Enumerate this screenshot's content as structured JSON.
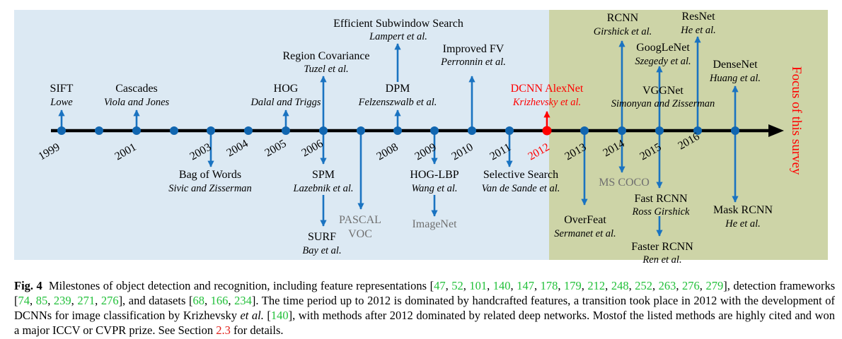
{
  "colors": {
    "left_panel": "#dce9f3",
    "right_panel": "#cdd4a7",
    "axis": "#000000",
    "marker": "#1166b0",
    "arrow": "#1a73c1",
    "highlight": "#ff0000",
    "gray_text": "#707070",
    "citation": "#22c03a"
  },
  "years": [
    "1999",
    "2001",
    "2003",
    "2004",
    "2005",
    "2006",
    "2008",
    "2009",
    "2010",
    "2011",
    "2012",
    "2013",
    "2014",
    "2015",
    "2016"
  ],
  "focus_label": "Focus of this survey",
  "above": [
    {
      "id": "sift",
      "title": "SIFT",
      "author": "Lowe"
    },
    {
      "id": "cascades",
      "title": "Cascades",
      "author": "Viola and Jones"
    },
    {
      "id": "hog",
      "title": "HOG",
      "author": "Dalal and Triggs"
    },
    {
      "id": "region-covariance",
      "title": "Region Covariance",
      "author": "Tuzel et al."
    },
    {
      "id": "efficient-subwindow",
      "title": "Efficient Subwindow Search",
      "author": "Lampert et al."
    },
    {
      "id": "dpm",
      "title": "DPM",
      "author": "Felzenszwalb et al."
    },
    {
      "id": "improved-fv",
      "title": "Improved FV",
      "author": "Perronnin et al."
    },
    {
      "id": "dcnn-alexnet",
      "title": "DCNN AlexNet",
      "author": "Krizhevsky et al."
    },
    {
      "id": "rcnn",
      "title": "RCNN",
      "author": "Girshick et al."
    },
    {
      "id": "googlenet",
      "title": "GoogLeNet",
      "author": "Szegedy et al."
    },
    {
      "id": "vggnet",
      "title": "VGGNet",
      "author": "Simonyan and Zisserman"
    },
    {
      "id": "resnet",
      "title": "ResNet",
      "author": "He et al."
    },
    {
      "id": "densenet",
      "title": "DenseNet",
      "author": "Huang et al."
    }
  ],
  "below": [
    {
      "id": "bag-of-words",
      "title": "Bag of Words",
      "author": "Sivic and Zisserman"
    },
    {
      "id": "spm",
      "title": "SPM",
      "author": "Lazebnik et al."
    },
    {
      "id": "surf",
      "title": "SURF",
      "author": "Bay et al."
    },
    {
      "id": "hog-lbp",
      "title": "HOG-LBP",
      "author": "Wang et al."
    },
    {
      "id": "selective-search",
      "title": "Selective Search",
      "author": "Van de Sande et al."
    },
    {
      "id": "overfeat",
      "title": "OverFeat",
      "author": "Sermanet et al."
    },
    {
      "id": "fast-rcnn",
      "title": "Fast RCNN",
      "author": "Ross Girshick"
    },
    {
      "id": "faster-rcnn",
      "title": "Faster RCNN",
      "author": "Ren et al."
    },
    {
      "id": "mask-rcnn",
      "title": "Mask RCNN",
      "author": "He et al."
    }
  ],
  "datasets": [
    {
      "id": "pascal-voc",
      "line1": "PASCAL",
      "line2": "VOC"
    },
    {
      "id": "imagenet",
      "line1": "ImageNet",
      "line2": ""
    },
    {
      "id": "ms-coco",
      "line1": "MS COCO",
      "line2": ""
    }
  ],
  "caption": {
    "label": "Fig. 4",
    "text1": "Milestones of object detection and recognition, including feature representations [",
    "cites1": [
      "47",
      "52",
      "101",
      "140",
      "147",
      "178",
      "179",
      "212",
      "248",
      "252",
      "263",
      "276",
      "279"
    ],
    "text2": "], detection frameworks [",
    "cites2": [
      "74",
      "85",
      "239",
      "271",
      "276"
    ],
    "text3": "], and datasets [",
    "cites3": [
      "68",
      "166",
      "234"
    ],
    "text4": "]. The time period up to 2012 is dominated by handcrafted features, a transition took place in 2012 with the development of DCNNs for image classification by Krizhevsky ",
    "etal": "et al.",
    "text5": " [",
    "cite4": "140",
    "text6": "], with methods after 2012 dominated by related deep networks. Mostof the listed methods are highly cited and won a major ICCV or CVPR prize. See Section ",
    "section": "2.3",
    "text7": " for details."
  }
}
